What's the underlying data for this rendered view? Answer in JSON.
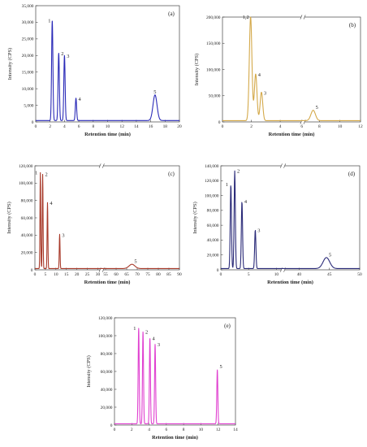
{
  "chart_data": [
    {
      "panel": "(a)",
      "type": "line",
      "color": "#2b2bb8",
      "xlabel": "Retention time (min)",
      "ylabel": "Intensity (CPS)",
      "xlim": [
        0,
        20
      ],
      "ylim": [
        0,
        35000
      ],
      "broken_x": false,
      "x_ticks": [
        "0",
        "2",
        "4",
        "6",
        "8",
        "10",
        "12",
        "14",
        "16",
        "18",
        "20"
      ],
      "y_ticks": [
        "0",
        "5,000",
        "10,000",
        "15,000",
        "20,000",
        "25,000",
        "30,000",
        "35,000"
      ],
      "peaks": [
        {
          "label": "1",
          "x": 2.3,
          "y": 30500
        },
        {
          "label": "2",
          "x": 3.2,
          "y": 20500
        },
        {
          "label": "3",
          "x": 4.0,
          "y": 19800
        },
        {
          "label": "4",
          "x": 5.6,
          "y": 6800
        },
        {
          "label": "5",
          "x": 16.6,
          "y": 7800
        }
      ]
    },
    {
      "panel": "(b)",
      "type": "line",
      "color": "#d4a94a",
      "xlabel": "Retention time (min)",
      "ylabel": "Intensity (CPS)",
      "xlim": [
        0,
        12
      ],
      "ylim": [
        0,
        200000
      ],
      "broken_x": true,
      "x_ticks": [
        "0",
        "2",
        "4",
        "6",
        "8",
        "10",
        "12"
      ],
      "y_ticks": [
        "0",
        "50,000",
        "100,000",
        "150,000",
        "200,000"
      ],
      "peaks": [
        {
          "label": "1,2",
          "x": 1.95,
          "y": 200000
        },
        {
          "label": "4",
          "x": 2.3,
          "y": 90000
        },
        {
          "label": "3",
          "x": 2.7,
          "y": 55000
        },
        {
          "label": "5",
          "x": 7.4,
          "y": 20000
        }
      ]
    },
    {
      "panel": "(c)",
      "type": "line",
      "color": "#a83a2a",
      "xlabel": "Retention time (min)",
      "ylabel": "Intensity (CPS)",
      "xlim": [
        0,
        90
      ],
      "ylim": [
        0,
        120000
      ],
      "broken_x": true,
      "x_ticks": [
        "0",
        "5",
        "10",
        "15",
        "20",
        "25",
        "30",
        "55",
        "60",
        "65",
        "70",
        "75",
        "80",
        "85",
        "90"
      ],
      "y_ticks": [
        "0",
        "20,000",
        "40,000",
        "60,000",
        "80,000",
        "100,000",
        "120,000"
      ],
      "peaks": [
        {
          "label": "1",
          "x": 2.6,
          "y": 112000
        },
        {
          "label": "2",
          "x": 3.7,
          "y": 110000
        },
        {
          "label": "4",
          "x": 6.0,
          "y": 77000
        },
        {
          "label": "3",
          "x": 11.8,
          "y": 40000
        },
        {
          "label": "5",
          "x": 67.5,
          "y": 5000
        }
      ]
    },
    {
      "panel": "(d)",
      "type": "line",
      "color": "#2a2a78",
      "xlabel": "Retention time (min)",
      "ylabel": "Intensity (CPS)",
      "xlim": [
        0,
        50
      ],
      "ylim": [
        0,
        140000
      ],
      "broken_x": true,
      "x_ticks": [
        "0",
        "5",
        "10",
        "40",
        "45",
        "50"
      ],
      "y_ticks": [
        "0",
        "20,000",
        "40,000",
        "60,000",
        "80,000",
        "100,000",
        "120,000",
        "140,000"
      ],
      "peaks": [
        {
          "label": "1",
          "x": 1.8,
          "y": 115000
        },
        {
          "label": "2",
          "x": 2.5,
          "y": 133000
        },
        {
          "label": "4",
          "x": 3.8,
          "y": 92000
        },
        {
          "label": "3",
          "x": 6.2,
          "y": 53000
        },
        {
          "label": "5",
          "x": 44.5,
          "y": 15000
        }
      ]
    },
    {
      "panel": "(e)",
      "type": "line",
      "color": "#e040d0",
      "xlabel": "Retention time (min)",
      "ylabel": "Intensity (CPS)",
      "xlim": [
        0,
        14
      ],
      "ylim": [
        0,
        120000
      ],
      "broken_x": false,
      "x_ticks": [
        "0",
        "2",
        "4",
        "6",
        "8",
        "10",
        "12",
        "14"
      ],
      "y_ticks": [
        "0",
        "20,000",
        "40,000",
        "60,000",
        "80,000",
        "100,000",
        "120,000"
      ],
      "peaks": [
        {
          "label": "1",
          "x": 2.8,
          "y": 108000
        },
        {
          "label": "2",
          "x": 3.3,
          "y": 104000
        },
        {
          "label": "4",
          "x": 4.1,
          "y": 97000
        },
        {
          "label": "3",
          "x": 4.7,
          "y": 90000
        },
        {
          "label": "5",
          "x": 11.9,
          "y": 61000
        }
      ]
    }
  ]
}
